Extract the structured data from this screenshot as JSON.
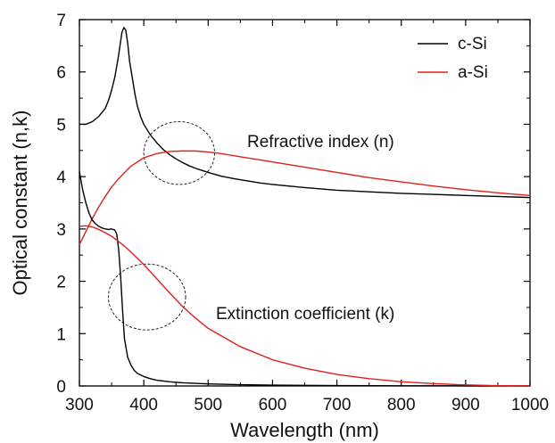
{
  "chart_data": {
    "type": "line",
    "xlabel": "Wavelength (nm)",
    "ylabel": "Optical constant (n,k)",
    "xlim": [
      300,
      1000
    ],
    "ylim": [
      0,
      7
    ],
    "xticks": [
      300,
      400,
      500,
      600,
      700,
      800,
      900,
      1000
    ],
    "yticks": [
      0,
      1,
      2,
      3,
      4,
      5,
      6,
      7
    ],
    "grid": false,
    "legend_position": "top-right",
    "series": [
      {
        "name": "c-Si",
        "quantity": "n",
        "color": "#000000",
        "x": [
          300,
          310,
          320,
          330,
          340,
          345,
          350,
          355,
          360,
          363,
          366,
          369,
          372,
          375,
          378,
          382,
          386,
          390,
          395,
          400,
          410,
          420,
          430,
          440,
          450,
          460,
          470,
          480,
          490,
          500,
          520,
          540,
          560,
          580,
          600,
          650,
          700,
          750,
          800,
          850,
          900,
          950,
          1000
        ],
        "y": [
          5.0,
          5.0,
          5.05,
          5.15,
          5.3,
          5.45,
          5.65,
          5.9,
          6.25,
          6.5,
          6.75,
          6.85,
          6.8,
          6.55,
          6.2,
          5.9,
          5.6,
          5.35,
          5.15,
          5.0,
          4.8,
          4.65,
          4.52,
          4.42,
          4.34,
          4.27,
          4.21,
          4.16,
          4.12,
          4.08,
          4.01,
          3.96,
          3.92,
          3.88,
          3.85,
          3.79,
          3.74,
          3.71,
          3.68,
          3.66,
          3.64,
          3.62,
          3.6
        ]
      },
      {
        "name": "a-Si",
        "quantity": "n",
        "color": "#e0201c",
        "x": [
          300,
          310,
          320,
          330,
          340,
          350,
          360,
          380,
          400,
          420,
          440,
          460,
          480,
          500,
          520,
          540,
          560,
          580,
          600,
          650,
          700,
          750,
          800,
          850,
          900,
          950,
          1000
        ],
        "y": [
          2.7,
          2.95,
          3.2,
          3.42,
          3.62,
          3.8,
          3.95,
          4.2,
          4.36,
          4.44,
          4.48,
          4.49,
          4.49,
          4.47,
          4.44,
          4.4,
          4.36,
          4.32,
          4.28,
          4.18,
          4.08,
          3.98,
          3.9,
          3.82,
          3.75,
          3.69,
          3.64
        ]
      },
      {
        "name": "c-Si",
        "quantity": "k",
        "color": "#000000",
        "x": [
          300,
          305,
          310,
          315,
          320,
          325,
          330,
          335,
          340,
          345,
          350,
          355,
          358,
          361,
          364,
          367,
          370,
          375,
          380,
          385,
          390,
          400,
          410,
          420,
          440,
          460,
          500,
          550,
          600,
          700,
          800,
          900,
          1000
        ],
        "y": [
          4.1,
          3.75,
          3.5,
          3.3,
          3.17,
          3.1,
          3.05,
          3.02,
          3.0,
          2.99,
          3.0,
          2.98,
          2.9,
          2.6,
          2.1,
          1.45,
          0.9,
          0.55,
          0.4,
          0.3,
          0.24,
          0.18,
          0.14,
          0.11,
          0.08,
          0.06,
          0.04,
          0.025,
          0.015,
          0.008,
          0.004,
          0.002,
          0.0
        ]
      },
      {
        "name": "a-Si",
        "quantity": "k",
        "color": "#e0201c",
        "x": [
          300,
          310,
          320,
          330,
          340,
          350,
          360,
          370,
          380,
          390,
          400,
          420,
          440,
          460,
          480,
          500,
          550,
          600,
          650,
          700,
          750,
          800,
          850,
          900,
          950,
          1000
        ],
        "y": [
          3.05,
          3.06,
          3.04,
          2.99,
          2.93,
          2.86,
          2.77,
          2.67,
          2.56,
          2.44,
          2.32,
          2.05,
          1.78,
          1.52,
          1.3,
          1.1,
          0.75,
          0.5,
          0.34,
          0.22,
          0.14,
          0.08,
          0.045,
          0.02,
          0.005,
          0.0
        ]
      }
    ],
    "annotations": {
      "refractive_index": "Refractive index (n)",
      "extinction_coefficient": "Extinction coefficient (k)"
    },
    "ellipses": [
      {
        "cx": 455,
        "cy": 4.45,
        "rx": 55,
        "ry": 0.6
      },
      {
        "cx": 405,
        "cy": 1.7,
        "rx": 60,
        "ry": 0.63
      }
    ]
  }
}
